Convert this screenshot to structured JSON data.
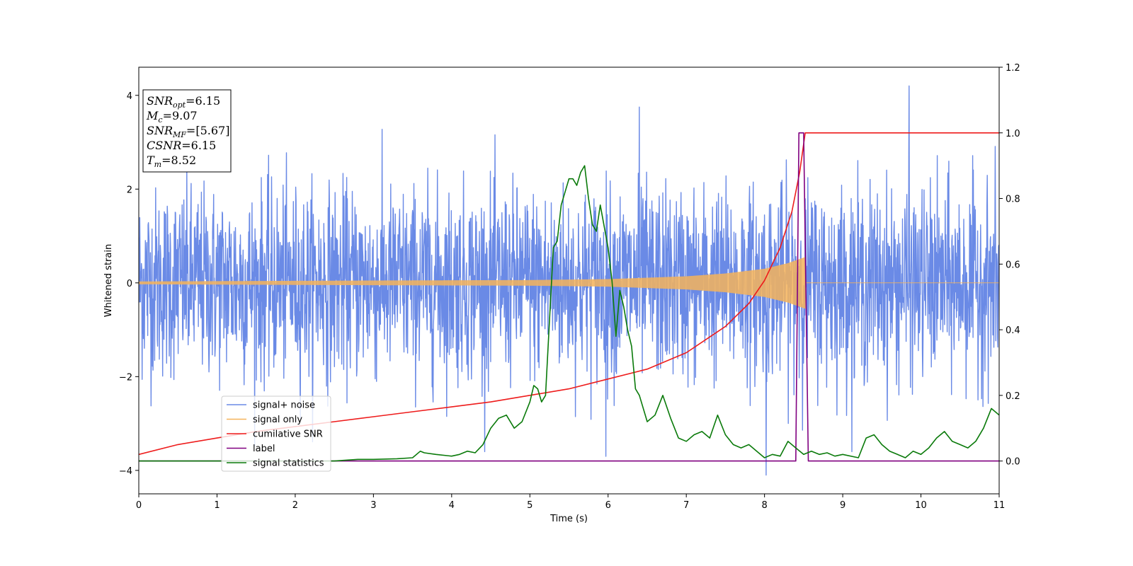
{
  "chart_data": {
    "type": "line",
    "xlabel": "Time (s)",
    "ylabel": "Whitened strain",
    "xlim": [
      0,
      11
    ],
    "ylim_left": [
      -4.5,
      4.6
    ],
    "ylim_right": [
      -0.1,
      1.2
    ],
    "x_ticks": [
      "0",
      "1",
      "2",
      "3",
      "4",
      "5",
      "6",
      "7",
      "8",
      "9",
      "10",
      "11"
    ],
    "y_left_ticks": [
      "−4",
      "−2",
      "0",
      "2",
      "4"
    ],
    "y_left_tick_values": [
      -4,
      -2,
      0,
      2,
      4
    ],
    "y_right_ticks": [
      "0.0",
      "0.2",
      "0.4",
      "0.6",
      "0.8",
      "1.0",
      "1.2"
    ],
    "y_right_tick_values": [
      0.0,
      0.2,
      0.4,
      0.6,
      0.8,
      1.0,
      1.2
    ],
    "grid": false,
    "legend_position": "lower-left",
    "info_box": {
      "position": "top-left",
      "lines": [
        {
          "main": "SNR",
          "sub": "opt",
          "rest": "=6.15"
        },
        {
          "main": "M",
          "sub": "c",
          "rest": "=9.07"
        },
        {
          "main": "SNR",
          "sub": "MF",
          "rest": "=[5.67]"
        },
        {
          "main": "CSNR",
          "sub": "",
          "rest": "=6.15"
        },
        {
          "main": "T",
          "sub": "m",
          "rest": "=8.52"
        }
      ]
    },
    "series": [
      {
        "name": "signal+ noise",
        "axis": "left",
        "color": "#6a8ae6",
        "style": "noise",
        "noise_sigma": 1.0,
        "x_range": [
          0,
          11
        ],
        "sample_count": 2600,
        "peaks": [
          {
            "x": 9.85,
            "y": 4.2
          },
          {
            "x": 8.02,
            "y": -4.1
          },
          {
            "x": 6.4,
            "y": 3.75
          },
          {
            "x": 5.97,
            "y": -3.7
          }
        ]
      },
      {
        "name": "signal only",
        "axis": "left",
        "color": "#f5b35a",
        "style": "chirp",
        "merger_time": 8.52,
        "envelope": [
          [
            0,
            0.03
          ],
          [
            3,
            0.05
          ],
          [
            5,
            0.06
          ],
          [
            6,
            0.08
          ],
          [
            7,
            0.14
          ],
          [
            7.5,
            0.2
          ],
          [
            8,
            0.3
          ],
          [
            8.3,
            0.42
          ],
          [
            8.52,
            0.55
          ]
        ]
      },
      {
        "name": "cumilative SNR",
        "axis": "right",
        "color": "#ee1c1c",
        "x": [
          0,
          0.5,
          1,
          1.5,
          2,
          2.5,
          3,
          3.5,
          4,
          4.5,
          5,
          5.5,
          6,
          6.5,
          7,
          7.5,
          7.8,
          8.0,
          8.2,
          8.35,
          8.45,
          8.52,
          8.55,
          11
        ],
        "y": [
          0.02,
          0.05,
          0.07,
          0.09,
          0.105,
          0.12,
          0.135,
          0.15,
          0.165,
          0.18,
          0.2,
          0.22,
          0.25,
          0.28,
          0.33,
          0.41,
          0.48,
          0.55,
          0.65,
          0.76,
          0.88,
          1.0,
          1.0,
          1.0
        ]
      },
      {
        "name": "label",
        "axis": "right",
        "color": "#800080",
        "x": [
          0,
          8.4,
          8.44,
          8.5,
          8.56,
          11
        ],
        "y": [
          0,
          0,
          1.0,
          1.0,
          0,
          0
        ]
      },
      {
        "name": "signal statistics",
        "axis": "right",
        "color": "#0a7a0a",
        "x": [
          0,
          1,
          2,
          2.5,
          2.8,
          3,
          3.3,
          3.5,
          3.6,
          3.65,
          3.8,
          4,
          4.1,
          4.2,
          4.3,
          4.4,
          4.5,
          4.6,
          4.7,
          4.8,
          4.9,
          5.0,
          5.05,
          5.1,
          5.15,
          5.2,
          5.3,
          5.35,
          5.4,
          5.45,
          5.5,
          5.55,
          5.6,
          5.65,
          5.7,
          5.75,
          5.8,
          5.85,
          5.9,
          6.0,
          6.05,
          6.1,
          6.15,
          6.2,
          6.25,
          6.3,
          6.35,
          6.4,
          6.5,
          6.6,
          6.7,
          6.8,
          6.9,
          7.0,
          7.1,
          7.2,
          7.3,
          7.4,
          7.5,
          7.6,
          7.7,
          7.8,
          7.9,
          8.0,
          8.1,
          8.2,
          8.3,
          8.4,
          8.5,
          8.6,
          8.7,
          8.8,
          8.9,
          9.0,
          9.2,
          9.3,
          9.4,
          9.5,
          9.6,
          9.7,
          9.8,
          9.9,
          10.0,
          10.1,
          10.2,
          10.3,
          10.4,
          10.5,
          10.6,
          10.7,
          10.8,
          10.9,
          11
        ],
        "y": [
          0.0,
          0.0,
          0.0,
          0.0,
          0.005,
          0.005,
          0.007,
          0.01,
          0.03,
          0.025,
          0.02,
          0.015,
          0.02,
          0.03,
          0.025,
          0.05,
          0.1,
          0.13,
          0.14,
          0.1,
          0.12,
          0.18,
          0.23,
          0.22,
          0.18,
          0.2,
          0.65,
          0.67,
          0.78,
          0.82,
          0.86,
          0.86,
          0.84,
          0.88,
          0.9,
          0.8,
          0.72,
          0.7,
          0.78,
          0.65,
          0.55,
          0.38,
          0.52,
          0.47,
          0.4,
          0.35,
          0.22,
          0.2,
          0.12,
          0.14,
          0.2,
          0.13,
          0.07,
          0.06,
          0.08,
          0.09,
          0.07,
          0.14,
          0.08,
          0.05,
          0.04,
          0.05,
          0.03,
          0.01,
          0.02,
          0.015,
          0.06,
          0.04,
          0.02,
          0.03,
          0.02,
          0.025,
          0.015,
          0.02,
          0.01,
          0.07,
          0.08,
          0.05,
          0.03,
          0.02,
          0.01,
          0.03,
          0.02,
          0.04,
          0.07,
          0.09,
          0.06,
          0.05,
          0.04,
          0.06,
          0.1,
          0.16,
          0.14
        ]
      }
    ]
  }
}
